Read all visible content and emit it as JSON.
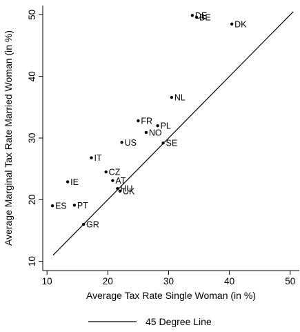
{
  "chart_data": {
    "type": "scatter",
    "xlabel": "Average Tax Rate Single Woman (in %)",
    "ylabel": "Average Marginal Tax Rate Married Woman (in %)",
    "xlim": [
      9.3,
      51.5
    ],
    "ylim": [
      8.5,
      51.5
    ],
    "xticks": [
      10,
      20,
      30,
      40,
      50
    ],
    "yticks": [
      10,
      20,
      30,
      40,
      50
    ],
    "grid": false,
    "legend": {
      "position": "bottom",
      "entries": [
        "45 Degree Line"
      ]
    },
    "reference_line": {
      "name": "45 Degree Line",
      "from": [
        11,
        11
      ],
      "to": [
        50.5,
        50.5
      ]
    },
    "points": [
      {
        "label": "DE",
        "x": 33.9,
        "y": 49.9
      },
      {
        "label": "BE",
        "x": 34.6,
        "y": 49.6
      },
      {
        "label": "DK",
        "x": 40.4,
        "y": 48.5
      },
      {
        "label": "NL",
        "x": 30.5,
        "y": 36.6
      },
      {
        "label": "FR",
        "x": 25.0,
        "y": 32.8
      },
      {
        "label": "PL",
        "x": 28.2,
        "y": 32.0
      },
      {
        "label": "NO",
        "x": 26.3,
        "y": 30.9
      },
      {
        "label": "US",
        "x": 22.3,
        "y": 29.3
      },
      {
        "label": "SE",
        "x": 29.1,
        "y": 29.2
      },
      {
        "label": "IT",
        "x": 17.3,
        "y": 26.8
      },
      {
        "label": "CZ",
        "x": 19.7,
        "y": 24.5
      },
      {
        "label": "AT",
        "x": 20.8,
        "y": 23.1
      },
      {
        "label": "IE",
        "x": 13.4,
        "y": 22.9
      },
      {
        "label": "HU",
        "x": 21.6,
        "y": 21.8
      },
      {
        "label": "UK",
        "x": 22.0,
        "y": 21.4
      },
      {
        "label": "ES",
        "x": 10.9,
        "y": 19.0
      },
      {
        "label": "PT",
        "x": 14.5,
        "y": 19.1
      },
      {
        "label": "GR",
        "x": 16.0,
        "y": 16.0
      }
    ]
  }
}
